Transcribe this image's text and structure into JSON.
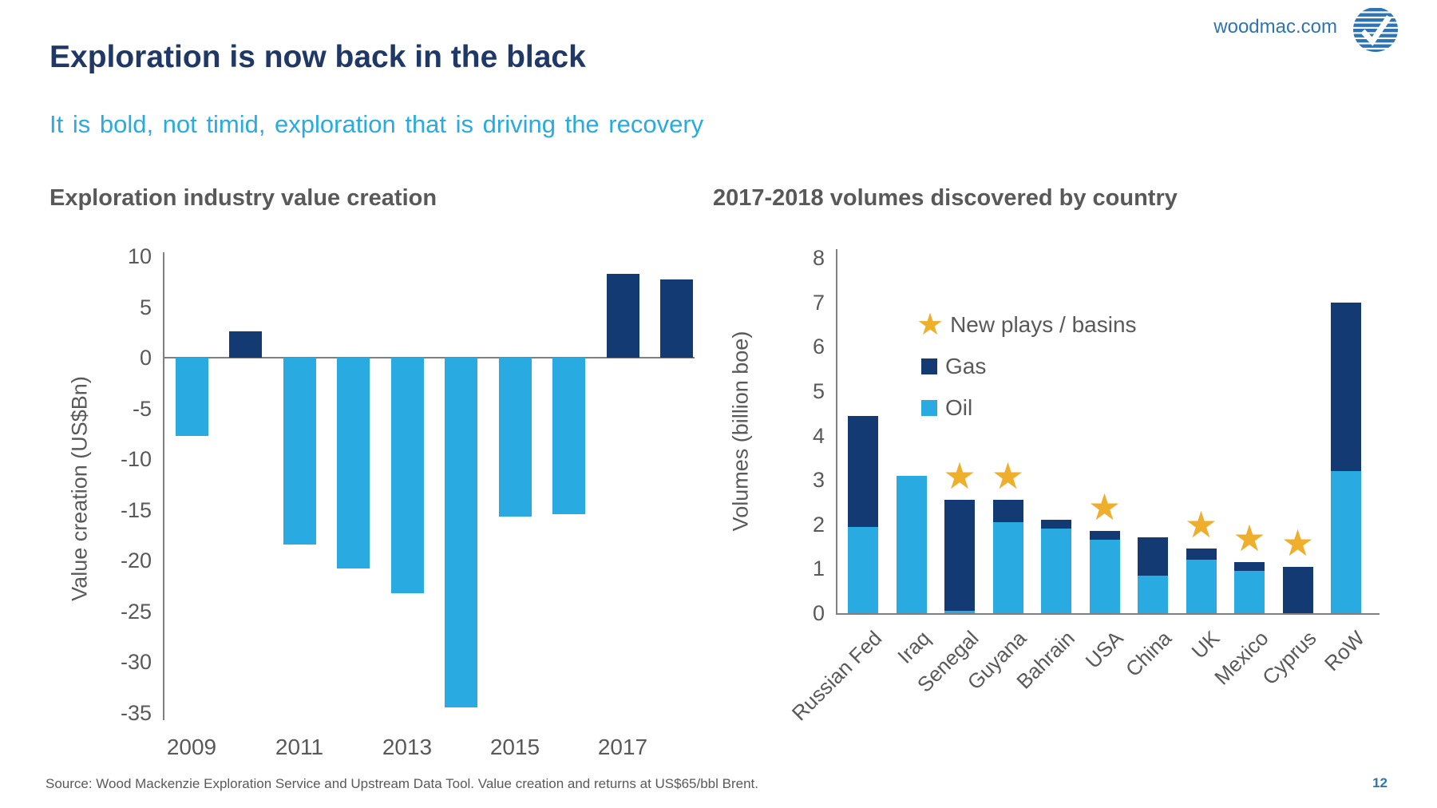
{
  "header": {
    "site": "woodmac.com",
    "logo": "woodmac-logo"
  },
  "title": "Exploration is now back in the black",
  "subtitle": "It is bold, not timid, exploration that is driving the recovery",
  "footer": {
    "source": "Source: Wood Mackenzie Exploration Service and Upstream Data Tool. Value creation and returns at US$65/bbl Brent.",
    "page": "12"
  },
  "colors": {
    "title_navy": "#1F3865",
    "accent_cyan": "#29ABE2",
    "bar_navy": "#133A73",
    "text_gray": "#595959",
    "axis_gray": "#808080",
    "star_gold": "#EFAF2D",
    "link_blue": "#2E74B5"
  },
  "chart_data": [
    {
      "type": "bar",
      "title": "Exploration industry value creation",
      "ylabel": "Value creation (US$Bn)",
      "ylim": [
        -35,
        10
      ],
      "ytick_step": 5,
      "grid": false,
      "categories": [
        "2009",
        "2010",
        "2011",
        "2012",
        "2013",
        "2014",
        "2015",
        "2016",
        "2017",
        "2018"
      ],
      "xtick_labels": [
        "2009",
        "2011",
        "2013",
        "2015",
        "2017"
      ],
      "values": [
        -7.7,
        2.6,
        -18.4,
        -20.8,
        -23.2,
        -34.5,
        -15.7,
        -15.4,
        8.3,
        7.7
      ],
      "positive_color": "#133A73",
      "negative_color": "#29ABE2"
    },
    {
      "type": "stacked-bar",
      "title": "2017-2018 volumes discovered by country",
      "ylabel": "Volumes (billion boe)",
      "ylim": [
        0,
        8
      ],
      "ytick_step": 1,
      "grid": false,
      "legend_position": "upper-left-inside",
      "categories": [
        "Russian Fed",
        "Iraq",
        "Senegal",
        "Guyana",
        "Bahrain",
        "USA",
        "China",
        "UK",
        "Mexico",
        "Cyprus",
        "RoW"
      ],
      "series": [
        {
          "name": "Oil",
          "color": "#29ABE2",
          "values": [
            1.95,
            3.1,
            0.05,
            2.05,
            1.9,
            1.65,
            0.85,
            1.2,
            0.95,
            0,
            3.2
          ]
        },
        {
          "name": "Gas",
          "color": "#133A73",
          "values": [
            2.5,
            0,
            2.5,
            0.5,
            0.2,
            0.2,
            0.85,
            0.25,
            0.2,
            1.05,
            3.8
          ]
        }
      ],
      "totals": [
        4.45,
        3.1,
        2.55,
        2.55,
        2.1,
        1.85,
        1.7,
        1.45,
        1.15,
        1.05,
        7.0
      ],
      "new_play_star": [
        false,
        false,
        true,
        true,
        false,
        true,
        false,
        true,
        true,
        true,
        false
      ],
      "legend": [
        {
          "label": "New plays / basins",
          "marker": "star",
          "color": "#EFAF2D"
        },
        {
          "label": "Gas",
          "marker": "square",
          "color": "#133A73"
        },
        {
          "label": "Oil",
          "marker": "square",
          "color": "#29ABE2"
        }
      ]
    }
  ]
}
